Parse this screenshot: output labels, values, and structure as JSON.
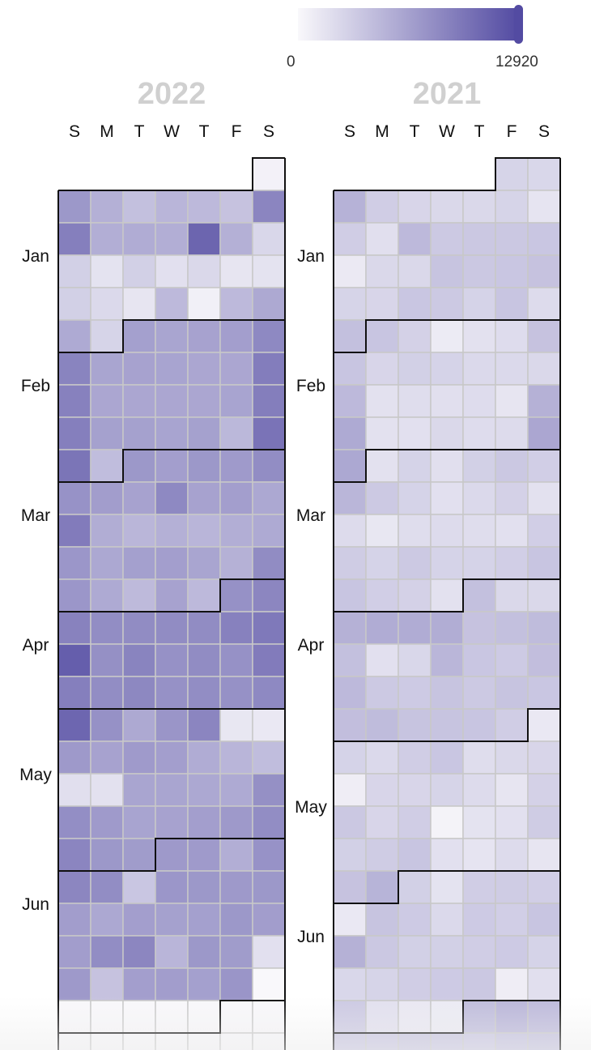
{
  "legend": {
    "min": "0",
    "max": "12920",
    "color_low": "#f9f8fb",
    "color_high": "#534ba2",
    "max_value": 12920
  },
  "chart_data": {
    "type": "heatmap",
    "weekdays": [
      "S",
      "M",
      "T",
      "W",
      "T",
      "F",
      "S"
    ],
    "panels": [
      {
        "year": "2022",
        "months": [
          {
            "label": "Jan",
            "week": 3
          },
          {
            "label": "Feb",
            "week": 7
          },
          {
            "label": "Mar",
            "week": 11
          },
          {
            "label": "Apr",
            "week": 15
          },
          {
            "label": "May",
            "week": 19
          },
          {
            "label": "Jun",
            "week": 23
          }
        ],
        "start_col": 6,
        "boundaries": [
          [
            0,
            6
          ],
          [
            5,
            2
          ],
          [
            9,
            2
          ],
          [
            13,
            5
          ],
          [
            17,
            0
          ],
          [
            21,
            3
          ],
          [
            26,
            5
          ]
        ],
        "weeks": [
          [
            null,
            null,
            null,
            null,
            null,
            null,
            500
          ],
          [
            7200,
            5400,
            4200,
            5000,
            4700,
            4000,
            8600
          ],
          [
            9000,
            5500,
            5700,
            5500,
            11000,
            5400,
            2500
          ],
          [
            3000,
            1600,
            3000,
            1800,
            2400,
            1400,
            1600
          ],
          [
            3000,
            2300,
            1400,
            4700,
            600,
            4700,
            5900
          ],
          [
            5800,
            2700,
            6600,
            6200,
            6400,
            6700,
            8300
          ],
          [
            8700,
            6200,
            6400,
            6300,
            6100,
            6100,
            9200
          ],
          [
            8900,
            6100,
            6100,
            6100,
            6100,
            6300,
            9100
          ],
          [
            9000,
            6500,
            6500,
            6300,
            6500,
            4800,
            9900
          ],
          [
            9800,
            4400,
            7200,
            6700,
            7200,
            7000,
            8000
          ],
          [
            7600,
            6800,
            6400,
            8300,
            6400,
            6700,
            6000
          ],
          [
            9300,
            5600,
            4900,
            5400,
            5000,
            5500,
            5800
          ],
          [
            7300,
            6000,
            6600,
            6700,
            6200,
            5300,
            8100
          ],
          [
            7300,
            5800,
            4600,
            6400,
            4700,
            7700,
            8500
          ],
          [
            8800,
            8000,
            8100,
            8100,
            8100,
            8900,
            9500
          ],
          [
            11500,
            7800,
            8700,
            7700,
            8100,
            7700,
            9300
          ],
          [
            9000,
            8000,
            8400,
            7700,
            8000,
            7700,
            8300
          ],
          [
            10900,
            7700,
            5900,
            7400,
            8600,
            1300,
            1200
          ],
          [
            7100,
            6400,
            7000,
            6700,
            5700,
            5000,
            4400
          ],
          [
            1900,
            1700,
            6200,
            6200,
            6000,
            5800,
            7800
          ],
          [
            7900,
            7000,
            6300,
            6400,
            6700,
            7100,
            8000
          ],
          [
            8600,
            7200,
            6900,
            7100,
            7000,
            5500,
            7600
          ],
          [
            8500,
            8000,
            3700,
            7300,
            7200,
            7100,
            7200
          ],
          [
            6800,
            6000,
            6700,
            6500,
            6600,
            7200,
            6800
          ],
          [
            6800,
            8000,
            8500,
            5000,
            7200,
            6900,
            1800
          ],
          [
            7100,
            4000,
            6700,
            6800,
            6600,
            7400,
            0
          ],
          [
            0,
            0,
            0,
            0,
            0,
            0,
            0
          ],
          [
            0,
            0,
            0,
            0,
            0,
            0,
            0
          ]
        ]
      },
      {
        "year": "2021",
        "months": [
          {
            "label": "Jan",
            "week": 3
          },
          {
            "label": "Feb",
            "week": 7
          },
          {
            "label": "Mar",
            "week": 11
          },
          {
            "label": "Apr",
            "week": 15
          },
          {
            "label": "May",
            "week": 20
          },
          {
            "label": "Jun",
            "week": 24
          }
        ],
        "start_col": 5,
        "boundaries": [
          [
            0,
            5
          ],
          [
            5,
            1
          ],
          [
            9,
            1
          ],
          [
            13,
            4
          ],
          [
            17,
            6
          ],
          [
            22,
            2
          ],
          [
            26,
            4
          ]
        ],
        "weeks": [
          [
            null,
            null,
            null,
            null,
            null,
            2700,
            2500
          ],
          [
            5200,
            3200,
            2600,
            2400,
            2400,
            2700,
            1500
          ],
          [
            3200,
            1900,
            4700,
            3500,
            3600,
            3600,
            3700
          ],
          [
            1100,
            2400,
            2400,
            3900,
            3600,
            3700,
            4000
          ],
          [
            2700,
            2600,
            3700,
            3500,
            2800,
            3800,
            2200
          ],
          [
            4200,
            3800,
            2900,
            1000,
            1700,
            2100,
            4000
          ],
          [
            3800,
            2600,
            3000,
            2800,
            2300,
            2300,
            2400
          ],
          [
            4700,
            1700,
            2000,
            1900,
            2100,
            1400,
            5300
          ],
          [
            5800,
            1700,
            1800,
            2400,
            2100,
            2200,
            6100
          ],
          [
            6000,
            1700,
            2800,
            1900,
            3000,
            3600,
            3100
          ],
          [
            4900,
            3500,
            2800,
            1800,
            2300,
            2900,
            1700
          ],
          [
            2200,
            1300,
            2000,
            2200,
            2000,
            1800,
            3100
          ],
          [
            3300,
            2800,
            3500,
            2800,
            2800,
            3100,
            3800
          ],
          [
            3800,
            3100,
            2900,
            1700,
            4200,
            2400,
            2400
          ],
          [
            5300,
            5700,
            5700,
            5600,
            4000,
            4200,
            4500
          ],
          [
            4200,
            1800,
            2500,
            4900,
            3700,
            3400,
            4300
          ],
          [
            4700,
            3500,
            3400,
            3900,
            3500,
            3900,
            3700
          ],
          [
            4300,
            4500,
            3900,
            3900,
            3800,
            3200,
            1200
          ],
          [
            2800,
            2300,
            3200,
            3700,
            2000,
            2400,
            2600
          ],
          [
            800,
            2600,
            2600,
            2700,
            2200,
            1400,
            2900
          ],
          [
            3600,
            2600,
            3200,
            400,
            1600,
            1800,
            3300
          ],
          [
            3000,
            3300,
            3800,
            1800,
            1500,
            2200,
            1400
          ],
          [
            4000,
            5100,
            3000,
            1600,
            3200,
            3300,
            3100
          ],
          [
            1200,
            3900,
            3400,
            2300,
            3400,
            3100,
            3800
          ],
          [
            5300,
            3600,
            3000,
            3000,
            3200,
            3400,
            2800
          ],
          [
            2500,
            2700,
            3200,
            3400,
            3600,
            800,
            1900
          ],
          [
            3500,
            1800,
            1200,
            1000,
            4500,
            5000,
            4700
          ],
          [
            3800,
            3700,
            3900,
            3800,
            3700,
            4100,
            4200
          ]
        ]
      }
    ]
  }
}
